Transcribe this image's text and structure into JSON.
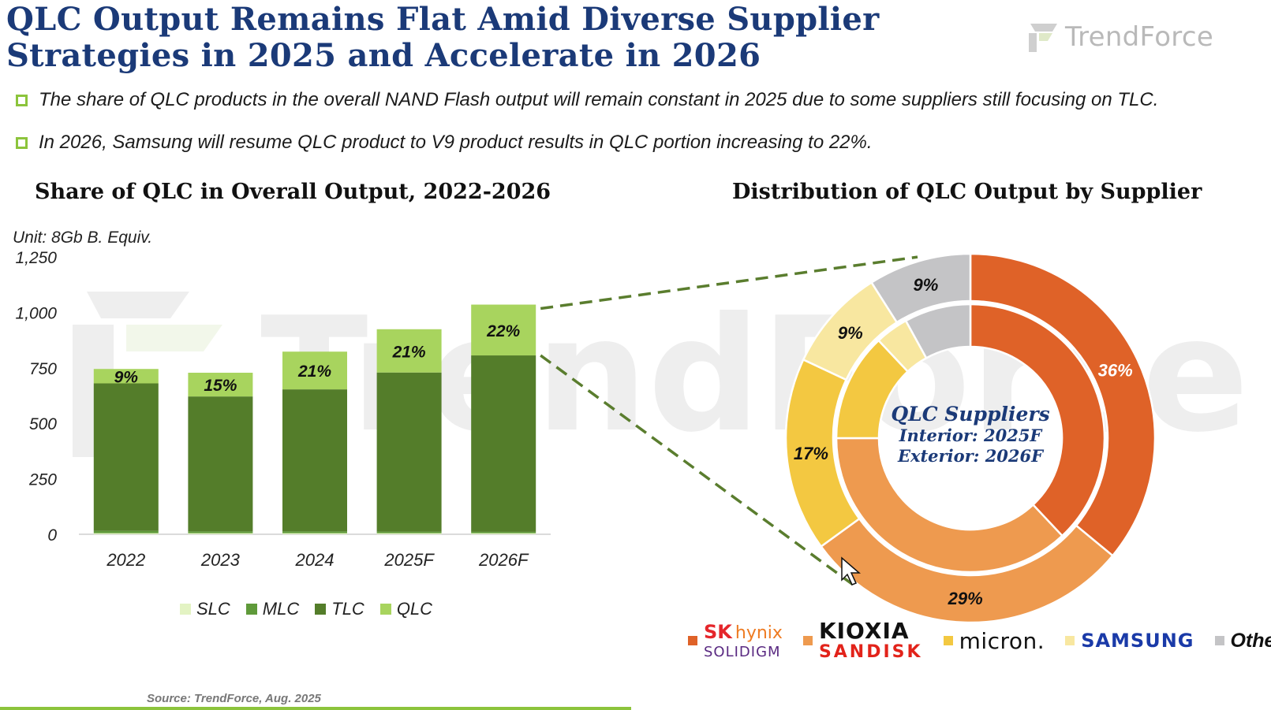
{
  "title": "QLC Output Remains Flat Amid Diverse Supplier Strategies in 2025 and Accelerate in 2026",
  "logo_text": "TrendForce",
  "bullets": [
    "The share of QLC products in the overall NAND Flash output will remain constant in 2025 due to some suppliers still focusing on TLC.",
    "In 2026, Samsung will resume QLC product to V9 product results in QLC portion increasing to 22%."
  ],
  "source": "Source: TrendForce, Aug. 2025",
  "chart_data": [
    {
      "type": "bar",
      "title": "Share of QLC in Overall Output, 2022-2026",
      "unit": "Unit: 8Gb B. Equiv.",
      "stacked": true,
      "categories": [
        "2022",
        "2023",
        "2024",
        "2025F",
        "2026F"
      ],
      "y_ticks": [
        "0",
        "250",
        "500",
        "750",
        "1,000",
        "1,250"
      ],
      "ylim": [
        0,
        1250
      ],
      "series": [
        {
          "name": "SLC",
          "color": "#e3f3c3",
          "values": [
            5,
            5,
            5,
            5,
            5
          ]
        },
        {
          "name": "MLC",
          "color": "#5f9a3a",
          "values": [
            10,
            8,
            8,
            7,
            6
          ]
        },
        {
          "name": "TLC",
          "color": "#547d2a",
          "values": [
            665,
            608,
            640,
            717,
            795
          ]
        },
        {
          "name": "QLC",
          "color": "#a8d45e",
          "values": [
            65,
            107,
            170,
            195,
            229
          ]
        }
      ],
      "data_labels": [
        "9%",
        "15%",
        "21%",
        "21%",
        "22%"
      ],
      "legend": "bottom"
    },
    {
      "type": "pie",
      "title": "Distribution of QLC Output by Supplier",
      "center_text": [
        "QLC Suppliers",
        "Interior: 2025F",
        "Exterior: 2026F"
      ],
      "categories": [
        "SK hynix / Solidigm",
        "Kioxia / SanDisk",
        "Micron",
        "Samsung",
        "Others"
      ],
      "colors": [
        "#df6228",
        "#ee9a4f",
        "#f3c841",
        "#f8e7a0",
        "#c4c4c6"
      ],
      "series": [
        {
          "name": "Interior: 2025F",
          "values": [
            38,
            37,
            13,
            4,
            8
          ]
        },
        {
          "name": "Exterior: 2026F",
          "values": [
            36,
            29,
            17,
            9,
            9
          ]
        }
      ],
      "labels": [
        "36%",
        "29%",
        "17%",
        "9%",
        "9%"
      ],
      "legend": "bottom"
    }
  ],
  "legend_brands": {
    "skhynix": "SK",
    "skhynix_b": "hynix",
    "solidigm": "SOLIDIGM",
    "kioxia": "KIOXIA",
    "sandisk": "SANDISK",
    "micron": "micron.",
    "samsung": "SAMSUNG",
    "others": "Others"
  }
}
